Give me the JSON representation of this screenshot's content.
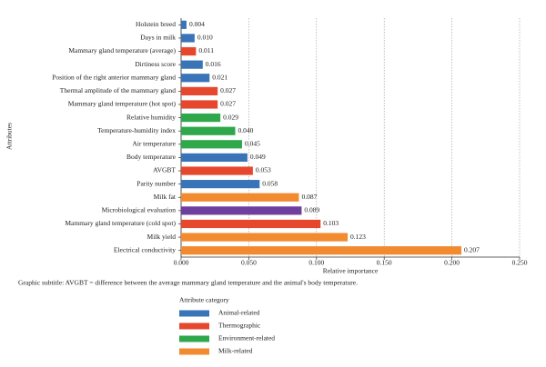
{
  "chart_data": {
    "type": "bar",
    "orientation": "horizontal",
    "ylabel": "Attributes",
    "xlabel": "Relative importance",
    "subtitle": "Graphic subtitle: AVGBT = difference between the average mammary gland temperature and the animal's body temperature.",
    "categories": [
      "Holstein breed",
      "Days in milk",
      "Mammary gland temperature (average)",
      "Dirtiness score",
      "Position of the right anterior mammary gland",
      "Thermal amplitude of the mammary gland",
      "Mammary gland temperature (hot spot)",
      "Relative humidity",
      "Temperature-humidity index",
      "Air temperature",
      "Body temperature",
      "AVGBT",
      "Parity number",
      "Milk fat",
      "Microbiological evaluation",
      "Mammary gland temperature (cold spot)",
      "Milk yield",
      "Electrical conductivity"
    ],
    "values": [
      0.004,
      0.01,
      0.011,
      0.016,
      0.021,
      0.027,
      0.027,
      0.029,
      0.04,
      0.045,
      0.049,
      0.053,
      0.058,
      0.087,
      0.089,
      0.103,
      0.123,
      0.207
    ],
    "value_labels": [
      "0.004",
      "0.010",
      "0.011",
      "0.016",
      "0.021",
      "0.027",
      "0.027",
      "0.029",
      "0.040",
      "0.045",
      "0.049",
      "0.053",
      "0.058",
      "0.087",
      "0.089",
      "0.103",
      "0.123",
      "0.207"
    ],
    "colors": [
      "#3a74b8",
      "#3a74b8",
      "#e6482e",
      "#3a74b8",
      "#3a74b8",
      "#e6482e",
      "#e6482e",
      "#2ea84a",
      "#2ea84a",
      "#2ea84a",
      "#3a74b8",
      "#e6482e",
      "#3a74b8",
      "#f28a30",
      "#6f3fa0",
      "#e6482e",
      "#f28a30",
      "#f28a30"
    ],
    "xlim": [
      0,
      0.25
    ],
    "xticks": [
      {
        "value": 0,
        "label": "0.000"
      },
      {
        "value": 0.05,
        "label": "0.050"
      },
      {
        "value": 0.1,
        "label": "0.100"
      },
      {
        "value": 0.15,
        "label": "0.150"
      },
      {
        "value": 0.2,
        "label": "0.200"
      },
      {
        "value": 0.25,
        "label": "0.250"
      }
    ],
    "grid": true,
    "legend": {
      "title": "Attribute category",
      "items": [
        {
          "name": "Animal-related",
          "color": "#3a74b8"
        },
        {
          "name": "Thermographic",
          "color": "#e6482e"
        },
        {
          "name": "Environment-related",
          "color": "#2ea84a"
        },
        {
          "name": "Milk-related",
          "color": "#f28a30"
        }
      ]
    }
  }
}
